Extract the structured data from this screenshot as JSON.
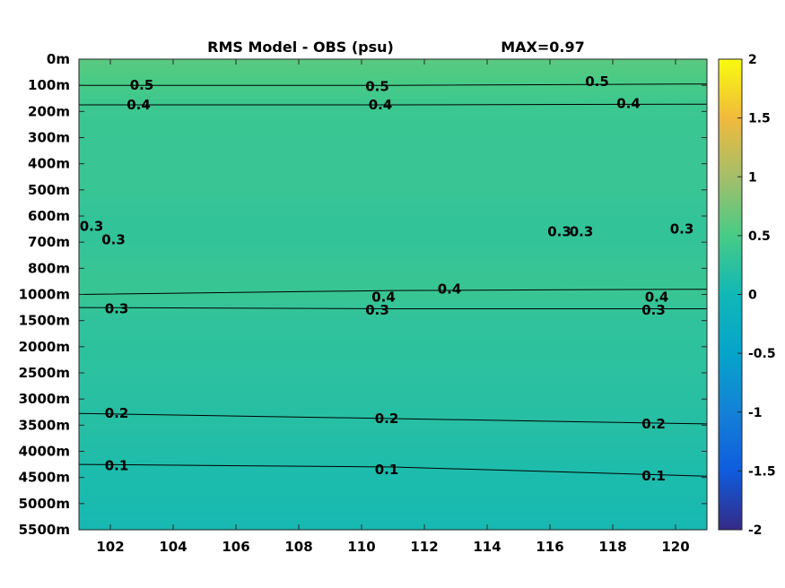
{
  "chart_data": {
    "type": "heatmap",
    "title": "RMS Model - OBS (psu)",
    "max_label": "MAX=0.97",
    "x_ticks": [
      "102",
      "104",
      "106",
      "108",
      "110",
      "112",
      "114",
      "116",
      "118",
      "120"
    ],
    "xlim": [
      101,
      121
    ],
    "y_ticks": [
      "0m",
      "100m",
      "200m",
      "300m",
      "400m",
      "500m",
      "600m",
      "700m",
      "800m",
      "1000m",
      "1500m",
      "2000m",
      "2500m",
      "3000m",
      "3500m",
      "4000m",
      "4500m",
      "5000m",
      "5500m"
    ],
    "colorbar": {
      "range": [
        -2,
        2
      ],
      "ticks": [
        "2",
        "1.5",
        "1",
        "0.5",
        "0",
        "-0.5",
        "-1",
        "-1.5",
        "-2"
      ],
      "colormap": "parula"
    },
    "depth_profile": [
      {
        "depth": "0m",
        "value": 0.6
      },
      {
        "depth": "100m",
        "value": 0.48
      },
      {
        "depth": "200m",
        "value": 0.38
      },
      {
        "depth": "300m",
        "value": 0.36
      },
      {
        "depth": "400m",
        "value": 0.36
      },
      {
        "depth": "500m",
        "value": 0.36
      },
      {
        "depth": "600m",
        "value": 0.31
      },
      {
        "depth": "700m",
        "value": 0.31
      },
      {
        "depth": "800m",
        "value": 0.35
      },
      {
        "depth": "1000m",
        "value": 0.36
      },
      {
        "depth": "1500m",
        "value": 0.28
      },
      {
        "depth": "2000m",
        "value": 0.26
      },
      {
        "depth": "2500m",
        "value": 0.24
      },
      {
        "depth": "3000m",
        "value": 0.21
      },
      {
        "depth": "3500m",
        "value": 0.19
      },
      {
        "depth": "4000m",
        "value": 0.15
      },
      {
        "depth": "4500m",
        "value": 0.1
      },
      {
        "depth": "5000m",
        "value": 0.08
      },
      {
        "depth": "5500m",
        "value": 0.05
      }
    ],
    "contours": [
      {
        "level": "0.5",
        "y_index": [
          1.0,
          1.0,
          0.95
        ]
      },
      {
        "level": "0.4",
        "y_index": [
          1.75,
          1.75,
          1.72
        ]
      },
      {
        "level": "0.4",
        "y_index": [
          9.0,
          8.85,
          8.8
        ]
      },
      {
        "level": "0.3",
        "y_index": [
          9.5,
          9.55,
          9.55
        ]
      },
      {
        "level": "0.2",
        "y_index": [
          13.55,
          13.75,
          13.95
        ]
      },
      {
        "level": "0.1",
        "y_index": [
          15.5,
          15.6,
          15.95
        ]
      }
    ],
    "contour_labels": [
      {
        "text": "0.5",
        "x": 103.0,
        "y_index": 1.0
      },
      {
        "text": "0.5",
        "x": 110.5,
        "y_index": 1.05
      },
      {
        "text": "0.5",
        "x": 117.5,
        "y_index": 0.85
      },
      {
        "text": "0.4",
        "x": 102.9,
        "y_index": 1.75
      },
      {
        "text": "0.4",
        "x": 110.6,
        "y_index": 1.75
      },
      {
        "text": "0.4",
        "x": 118.5,
        "y_index": 1.7
      },
      {
        "text": "0.3",
        "x": 101.4,
        "y_index": 6.4
      },
      {
        "text": "0.3",
        "x": 102.1,
        "y_index": 6.9
      },
      {
        "text": "0.3",
        "x": 116.3,
        "y_index": 6.6
      },
      {
        "text": "0.3",
        "x": 117.0,
        "y_index": 6.6
      },
      {
        "text": "0.3",
        "x": 120.2,
        "y_index": 6.5
      },
      {
        "text": "0.4",
        "x": 110.7,
        "y_index": 9.1
      },
      {
        "text": "0.4",
        "x": 112.8,
        "y_index": 8.8
      },
      {
        "text": "0.4",
        "x": 119.4,
        "y_index": 9.1
      },
      {
        "text": "0.3",
        "x": 102.2,
        "y_index": 9.55
      },
      {
        "text": "0.3",
        "x": 110.5,
        "y_index": 9.6
      },
      {
        "text": "0.3",
        "x": 119.3,
        "y_index": 9.6
      },
      {
        "text": "0.2",
        "x": 102.2,
        "y_index": 13.55
      },
      {
        "text": "0.2",
        "x": 110.8,
        "y_index": 13.75
      },
      {
        "text": "0.2",
        "x": 119.3,
        "y_index": 13.95
      },
      {
        "text": "0.1",
        "x": 102.2,
        "y_index": 15.55
      },
      {
        "text": "0.1",
        "x": 110.8,
        "y_index": 15.7
      },
      {
        "text": "0.1",
        "x": 119.3,
        "y_index": 15.95
      }
    ]
  }
}
